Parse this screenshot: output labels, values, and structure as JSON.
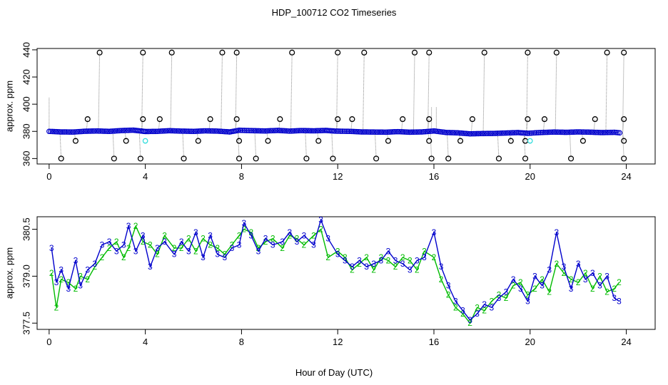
{
  "chart_data": {
    "title": "HDP_100712  CO2 Timeseries",
    "xlabel": "Hour of Day (UTC)",
    "colors": {
      "series_main": "#0000cc",
      "series_alt": "#00bb00",
      "spike": "#000000",
      "spike_line": "#888888",
      "cyan": "#33dddd"
    },
    "panels": [
      {
        "type": "scatter",
        "ylabel": "approx. ppm",
        "xlim": [
          -0.5,
          25.2
        ],
        "ylim": [
          356,
          441
        ],
        "xticks": [
          0,
          4,
          8,
          12,
          16,
          20,
          24
        ],
        "yticks": [
          360,
          380,
          400,
          420,
          440
        ],
        "baseline_points": [
          [
            0.0,
            380
          ],
          [
            0.5,
            379.6
          ],
          [
            1.0,
            379.5
          ],
          [
            1.5,
            380.1
          ],
          [
            2.0,
            380.3
          ],
          [
            2.5,
            380.0
          ],
          [
            3.0,
            380.6
          ],
          [
            3.5,
            380.9
          ],
          [
            3.9,
            380.1
          ],
          [
            4.0,
            379.9
          ],
          [
            4.5,
            380.0
          ],
          [
            5.0,
            380.5
          ],
          [
            5.5,
            380.2
          ],
          [
            6.0,
            380.0
          ],
          [
            6.5,
            380.4
          ],
          [
            7.0,
            380.2
          ],
          [
            7.5,
            379.6
          ],
          [
            7.9,
            380.8
          ],
          [
            8.5,
            380.5
          ],
          [
            9.0,
            380.3
          ],
          [
            9.5,
            380.7
          ],
          [
            10.0,
            380.2
          ],
          [
            10.5,
            380.6
          ],
          [
            11.0,
            380.4
          ],
          [
            11.5,
            380.7
          ],
          [
            11.9,
            380.2
          ],
          [
            12.5,
            380.0
          ],
          [
            13.0,
            379.6
          ],
          [
            13.5,
            379.5
          ],
          [
            14.0,
            379.4
          ],
          [
            14.5,
            379.8
          ],
          [
            15.0,
            379.4
          ],
          [
            15.5,
            379.6
          ],
          [
            16.0,
            380.3
          ],
          [
            16.5,
            379.2
          ],
          [
            17.0,
            378.9
          ],
          [
            17.5,
            378.2
          ],
          [
            18.0,
            378.4
          ],
          [
            18.5,
            378.5
          ],
          [
            19.0,
            378.8
          ],
          [
            19.5,
            379.1
          ],
          [
            19.9,
            378.6
          ],
          [
            20.5,
            379.2
          ],
          [
            21.0,
            379.5
          ],
          [
            21.5,
            379.3
          ],
          [
            22.0,
            379.6
          ],
          [
            22.5,
            379.4
          ],
          [
            23.0,
            379.1
          ],
          [
            23.5,
            379.3
          ],
          [
            23.8,
            378.8
          ]
        ],
        "spikes_high": [
          2.1,
          3.9,
          5.1,
          7.2,
          7.8,
          10.1,
          12.0,
          13.1,
          15.2,
          15.8,
          18.1,
          19.9,
          21.1,
          23.2,
          23.9
        ],
        "spikes_mid": [
          1.6,
          3.9,
          4.6,
          6.7,
          7.8,
          9.6,
          12.0,
          12.6,
          14.7,
          15.8,
          17.6,
          19.9,
          20.6,
          22.7,
          23.9
        ],
        "spikes_low": [
          0.5,
          2.7,
          3.8,
          5.6,
          7.9,
          8.6,
          10.7,
          11.8,
          13.6,
          15.9,
          16.6,
          18.7,
          19.8,
          21.7,
          23.9
        ],
        "spikes_mlow": [
          1.1,
          3.2,
          6.2,
          7.9,
          9.1,
          11.2,
          14.1,
          15.8,
          17.1,
          19.2,
          19.8,
          22.2,
          23.9
        ],
        "cyan_points": [
          [
            4.0,
            373
          ],
          [
            20.0,
            373
          ]
        ]
      },
      {
        "type": "line",
        "ylabel": "approx. ppm",
        "xlim": [
          -0.5,
          25.2
        ],
        "ylim": [
          377.3,
          380.9
        ],
        "xticks": [
          0,
          4,
          8,
          12,
          16,
          20,
          24
        ],
        "yticks": [
          377.5,
          379.0,
          380.5
        ],
        "ytick_labels": [
          "377.5",
          "379.0",
          "380.5"
        ],
        "series_main_label": "3",
        "series_alt_label": "2",
        "series_main": {
          "name": "3",
          "points": [
            [
              0.1,
              379.9
            ],
            [
              0.3,
              378.8
            ],
            [
              0.5,
              379.2
            ],
            [
              0.8,
              378.6
            ],
            [
              1.1,
              379.5
            ],
            [
              1.3,
              378.7
            ],
            [
              1.6,
              379.2
            ],
            [
              1.9,
              379.4
            ],
            [
              2.2,
              380.0
            ],
            [
              2.5,
              380.1
            ],
            [
              2.8,
              379.8
            ],
            [
              3.1,
              380.0
            ],
            [
              3.3,
              380.6
            ],
            [
              3.6,
              379.8
            ],
            [
              3.9,
              380.3
            ],
            [
              4.2,
              379.3
            ],
            [
              4.5,
              379.9
            ],
            [
              4.8,
              380.1
            ],
            [
              5.2,
              379.7
            ],
            [
              5.5,
              380.1
            ],
            [
              5.8,
              379.8
            ],
            [
              6.1,
              380.4
            ],
            [
              6.4,
              379.6
            ],
            [
              6.7,
              380.3
            ],
            [
              7.0,
              379.7
            ],
            [
              7.3,
              379.6
            ],
            [
              7.6,
              379.9
            ],
            [
              7.9,
              380.0
            ],
            [
              8.1,
              380.7
            ],
            [
              8.4,
              380.3
            ],
            [
              8.7,
              379.8
            ],
            [
              9.0,
              380.2
            ],
            [
              9.3,
              380.0
            ],
            [
              9.7,
              380.1
            ],
            [
              10.0,
              380.4
            ],
            [
              10.3,
              380.1
            ],
            [
              10.6,
              380.3
            ],
            [
              11.0,
              380.0
            ],
            [
              11.3,
              380.8
            ],
            [
              11.6,
              380.2
            ],
            [
              12.0,
              379.7
            ],
            [
              12.3,
              379.5
            ],
            [
              12.6,
              379.3
            ],
            [
              12.9,
              379.5
            ],
            [
              13.2,
              379.3
            ],
            [
              13.5,
              379.4
            ],
            [
              13.8,
              379.5
            ],
            [
              14.1,
              379.8
            ],
            [
              14.4,
              379.5
            ],
            [
              14.7,
              379.4
            ],
            [
              15.0,
              379.2
            ],
            [
              15.3,
              379.5
            ],
            [
              15.6,
              379.6
            ],
            [
              16.0,
              380.4
            ],
            [
              16.3,
              379.3
            ],
            [
              16.6,
              378.7
            ],
            [
              16.9,
              378.2
            ],
            [
              17.2,
              377.9
            ],
            [
              17.5,
              377.6
            ],
            [
              17.8,
              377.8
            ],
            [
              18.1,
              378.1
            ],
            [
              18.4,
              378.0
            ],
            [
              18.7,
              378.3
            ],
            [
              19.0,
              378.5
            ],
            [
              19.3,
              378.9
            ],
            [
              19.6,
              378.6
            ],
            [
              19.9,
              378.2
            ],
            [
              20.2,
              379.0
            ],
            [
              20.5,
              378.7
            ],
            [
              20.8,
              379.2
            ],
            [
              21.1,
              380.4
            ],
            [
              21.4,
              379.3
            ],
            [
              21.7,
              378.6
            ],
            [
              22.0,
              379.4
            ],
            [
              22.3,
              378.9
            ],
            [
              22.6,
              379.1
            ],
            [
              22.9,
              378.7
            ],
            [
              23.2,
              379.0
            ],
            [
              23.5,
              378.3
            ],
            [
              23.7,
              378.2
            ]
          ]
        },
        "series_alt": {
          "name": "2",
          "points": [
            [
              0.1,
              379.1
            ],
            [
              0.3,
              378.0
            ],
            [
              0.5,
              378.9
            ],
            [
              0.8,
              378.8
            ],
            [
              1.1,
              378.6
            ],
            [
              1.3,
              379.0
            ],
            [
              1.6,
              378.9
            ],
            [
              1.9,
              379.3
            ],
            [
              2.2,
              379.6
            ],
            [
              2.5,
              379.9
            ],
            [
              2.8,
              380.1
            ],
            [
              3.1,
              379.6
            ],
            [
              3.3,
              379.9
            ],
            [
              3.6,
              380.6
            ],
            [
              3.9,
              380.1
            ],
            [
              4.2,
              380.0
            ],
            [
              4.5,
              379.7
            ],
            [
              4.8,
              380.3
            ],
            [
              5.2,
              379.9
            ],
            [
              5.5,
              379.9
            ],
            [
              5.8,
              380.2
            ],
            [
              6.1,
              379.8
            ],
            [
              6.4,
              380.2
            ],
            [
              6.7,
              380.0
            ],
            [
              7.0,
              379.9
            ],
            [
              7.3,
              379.7
            ],
            [
              7.6,
              380.0
            ],
            [
              7.9,
              380.3
            ],
            [
              8.1,
              380.5
            ],
            [
              8.4,
              380.4
            ],
            [
              8.7,
              379.9
            ],
            [
              9.0,
              380.1
            ],
            [
              9.3,
              380.2
            ],
            [
              9.7,
              379.9
            ],
            [
              10.0,
              380.3
            ],
            [
              10.3,
              380.2
            ],
            [
              10.6,
              380.0
            ],
            [
              11.0,
              380.3
            ],
            [
              11.3,
              380.5
            ],
            [
              11.6,
              379.6
            ],
            [
              12.0,
              379.8
            ],
            [
              12.3,
              379.6
            ],
            [
              12.6,
              379.2
            ],
            [
              12.9,
              379.4
            ],
            [
              13.2,
              379.6
            ],
            [
              13.5,
              379.2
            ],
            [
              13.8,
              379.6
            ],
            [
              14.1,
              379.5
            ],
            [
              14.4,
              379.3
            ],
            [
              14.7,
              379.6
            ],
            [
              15.0,
              379.5
            ],
            [
              15.3,
              379.2
            ],
            [
              15.6,
              379.8
            ],
            [
              16.0,
              379.6
            ],
            [
              16.3,
              378.9
            ],
            [
              16.6,
              378.4
            ],
            [
              16.9,
              378.0
            ],
            [
              17.2,
              377.8
            ],
            [
              17.5,
              377.5
            ],
            [
              17.8,
              378.0
            ],
            [
              18.1,
              377.9
            ],
            [
              18.4,
              378.2
            ],
            [
              18.7,
              378.4
            ],
            [
              19.0,
              378.3
            ],
            [
              19.3,
              378.7
            ],
            [
              19.6,
              378.8
            ],
            [
              19.9,
              378.4
            ],
            [
              20.2,
              378.6
            ],
            [
              20.5,
              378.9
            ],
            [
              20.8,
              378.5
            ],
            [
              21.1,
              379.4
            ],
            [
              21.4,
              379.1
            ],
            [
              21.7,
              378.9
            ],
            [
              22.0,
              378.8
            ],
            [
              22.3,
              379.1
            ],
            [
              22.6,
              378.6
            ],
            [
              22.9,
              379.0
            ],
            [
              23.2,
              378.5
            ],
            [
              23.5,
              378.6
            ],
            [
              23.7,
              378.8
            ]
          ]
        }
      }
    ]
  }
}
